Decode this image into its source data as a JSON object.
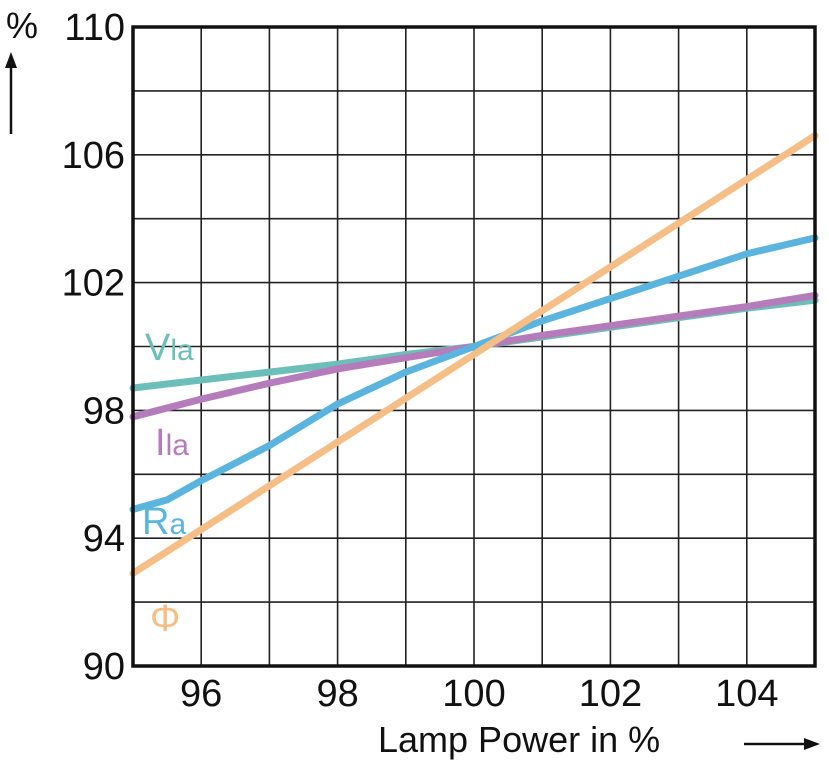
{
  "chart_data": {
    "type": "line",
    "xlabel": "Lamp Power in %",
    "ylabel": "%",
    "xlim": [
      95,
      105
    ],
    "ylim": [
      90,
      110
    ],
    "xticks": [
      96,
      98,
      100,
      102,
      104
    ],
    "yticks": [
      90,
      94,
      98,
      102,
      106,
      110
    ],
    "xgrid_step": 1,
    "ygrid_step": 2,
    "grid": true,
    "series": [
      {
        "name": "Vla",
        "name_main": "V",
        "name_sub": "la",
        "color": "#6cbfb8",
        "x": [
          95,
          96,
          97,
          98,
          99,
          100,
          101,
          102,
          103,
          104,
          105
        ],
        "y": [
          98.7,
          98.95,
          99.2,
          99.45,
          99.75,
          100.0,
          100.3,
          100.6,
          100.9,
          101.2,
          101.45
        ]
      },
      {
        "name": "Ila",
        "name_main": "I",
        "name_sub": "la",
        "color": "#b57cbb",
        "x": [
          95,
          96,
          97,
          98,
          99,
          100,
          101,
          102,
          103,
          104,
          105
        ],
        "y": [
          97.8,
          98.35,
          98.85,
          99.3,
          99.65,
          100.0,
          100.35,
          100.65,
          100.95,
          101.25,
          101.6
        ]
      },
      {
        "name": "Ra",
        "name_main": "R",
        "name_sub": "a",
        "color": "#5ab4de",
        "x": [
          95,
          95.5,
          96,
          97,
          98,
          99,
          100,
          101,
          102,
          103,
          104,
          105
        ],
        "y": [
          94.9,
          95.2,
          95.8,
          96.9,
          98.2,
          99.2,
          100.0,
          100.8,
          101.5,
          102.2,
          102.9,
          103.4
        ]
      },
      {
        "name": "Φ",
        "name_main": "Φ",
        "name_sub": "",
        "color": "#f5be87",
        "x": [
          95,
          105
        ],
        "y": [
          92.9,
          106.6
        ]
      }
    ]
  }
}
